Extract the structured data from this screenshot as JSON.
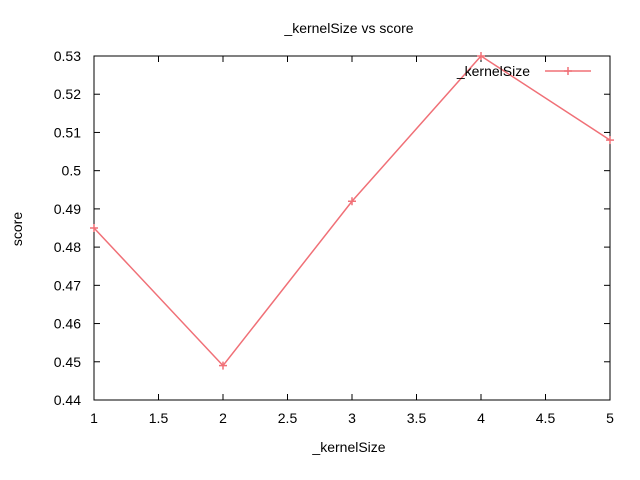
{
  "chart_data": {
    "type": "line",
    "title": "_kernelSize vs score",
    "xlabel": "_kernelSize",
    "ylabel": "score",
    "xlim": [
      1,
      5
    ],
    "ylim": [
      0.44,
      0.53
    ],
    "xticks": [
      1,
      1.5,
      2,
      2.5,
      3,
      3.5,
      4,
      4.5,
      5
    ],
    "xtick_labels": [
      "1",
      "1.5",
      "2",
      "2.5",
      "3",
      "3.5",
      "4",
      "4.5",
      "5"
    ],
    "yticks": [
      0.44,
      0.45,
      0.46,
      0.47,
      0.48,
      0.49,
      0.5,
      0.51,
      0.52,
      0.53
    ],
    "ytick_labels": [
      "0.44",
      "0.45",
      "0.46",
      "0.47",
      "0.48",
      "0.49",
      "0.5",
      "0.51",
      "0.52",
      "0.53"
    ],
    "grid": false,
    "legend_position": "top-right",
    "series": [
      {
        "name": "_kernelSize",
        "color": "#f07077",
        "marker": "plus",
        "x": [
          1,
          2,
          3,
          4,
          5
        ],
        "y": [
          0.485,
          0.449,
          0.492,
          0.53,
          0.508
        ]
      }
    ]
  }
}
